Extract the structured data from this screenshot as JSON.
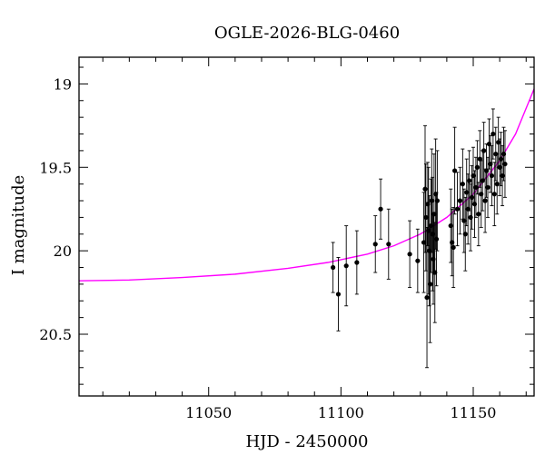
{
  "chart_data": {
    "type": "scatter",
    "title": "OGLE-2026-BLG-0460",
    "xlabel": "HJD - 2450000",
    "ylabel": "I magnitude",
    "xlim": [
      11001,
      11173
    ],
    "ylim": [
      20.87,
      18.84
    ],
    "y_axis_inverted": true,
    "x_major_ticks": [
      11050,
      11100,
      11150
    ],
    "x_tick_labels": [
      "11050",
      "11100",
      "11150"
    ],
    "y_major_ticks": [
      19,
      19.5,
      20,
      20.5
    ],
    "y_tick_labels": [
      "19",
      "19.5",
      "20",
      "20.5"
    ],
    "grid": false,
    "legend": "none",
    "colors": {
      "points": "#000000",
      "model": "#ff00ff",
      "axes": "#000000"
    },
    "model_curve": {
      "name": "",
      "x": [
        11001,
        11020,
        11040,
        11060,
        11080,
        11095,
        11110,
        11120,
        11130,
        11140,
        11150,
        11160,
        11166,
        11173
      ],
      "y": [
        20.18,
        20.175,
        20.16,
        20.14,
        20.105,
        20.07,
        20.02,
        19.97,
        19.9,
        19.8,
        19.66,
        19.46,
        19.3,
        19.03
      ]
    },
    "series": [
      {
        "name": "",
        "x": [
          11097,
          11099,
          11102,
          11106,
          11113,
          11115,
          11118,
          11126,
          11129,
          11131.3,
          11131.8,
          11132.1,
          11132.5,
          11132.8,
          11133.1,
          11133.4,
          11133.7,
          11134.0,
          11134.3,
          11134.6,
          11134.9,
          11135.2,
          11135.5,
          11135.8,
          11136.1,
          11136.4,
          11141.5,
          11142.0,
          11142.5,
          11143.0,
          11144.0,
          11145.0,
          11146.0,
          11146.5,
          11147.0,
          11147.5,
          11148.0,
          11148.5,
          11149.0,
          11149.5,
          11150.0,
          11150.5,
          11151.0,
          11151.5,
          11152.0,
          11152.5,
          11153.0,
          11153.5,
          11154.0,
          11154.5,
          11155.0,
          11155.5,
          11156.0,
          11156.5,
          11157.0,
          11157.5,
          11158.0,
          11158.5,
          11159.0,
          11159.5,
          11160.0,
          11160.5,
          11161.0,
          11161.5,
          11162.0
        ],
        "y": [
          20.1,
          20.26,
          20.09,
          20.07,
          19.96,
          19.75,
          19.96,
          20.02,
          20.06,
          19.95,
          19.63,
          19.8,
          20.28,
          19.72,
          19.88,
          20.0,
          20.2,
          19.85,
          19.7,
          19.9,
          20.05,
          19.78,
          20.13,
          19.66,
          19.93,
          19.7,
          19.85,
          19.95,
          19.98,
          19.52,
          19.75,
          19.7,
          19.6,
          19.82,
          19.9,
          19.65,
          19.75,
          19.58,
          19.8,
          19.68,
          19.55,
          19.72,
          19.62,
          19.5,
          19.78,
          19.45,
          19.66,
          19.58,
          19.4,
          19.7,
          19.52,
          19.62,
          19.36,
          19.48,
          19.55,
          19.3,
          19.66,
          19.42,
          19.6,
          19.35,
          19.5,
          19.45,
          19.55,
          19.42,
          19.48
        ],
        "errors": [
          0.15,
          0.22,
          0.24,
          0.19,
          0.17,
          0.18,
          0.21,
          0.2,
          0.19,
          0.3,
          0.38,
          0.32,
          0.42,
          0.25,
          0.38,
          0.33,
          0.35,
          0.28,
          0.31,
          0.34,
          0.27,
          0.36,
          0.3,
          0.33,
          0.28,
          0.3,
          0.22,
          0.2,
          0.24,
          0.26,
          0.22,
          0.2,
          0.21,
          0.19,
          0.22,
          0.2,
          0.21,
          0.18,
          0.2,
          0.19,
          0.17,
          0.2,
          0.18,
          0.16,
          0.19,
          0.17,
          0.2,
          0.18,
          0.17,
          0.19,
          0.16,
          0.18,
          0.15,
          0.17,
          0.18,
          0.15,
          0.19,
          0.16,
          0.18,
          0.15,
          0.17,
          0.16,
          0.18,
          0.16,
          0.2
        ]
      }
    ]
  }
}
